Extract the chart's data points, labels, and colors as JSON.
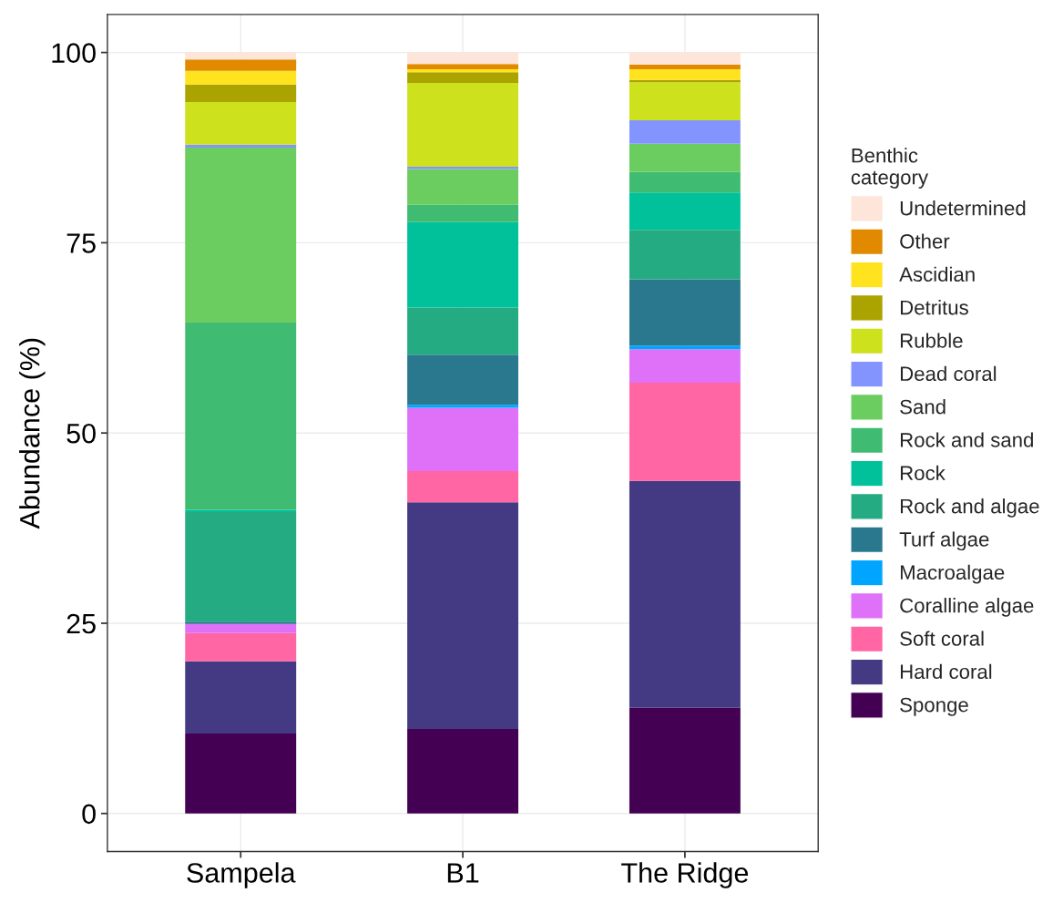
{
  "chart_data": {
    "type": "bar",
    "stacked": true,
    "ylabel": "Abundance (%)",
    "legend_title": "Benthic\ncategory",
    "legend": "right",
    "grid": true,
    "categories": [
      "Sampela",
      "B1",
      "The Ridge"
    ],
    "ylim": [
      -5,
      105
    ],
    "yticks": [
      0,
      25,
      50,
      75,
      100
    ],
    "series": [
      {
        "name": "Sponge",
        "color": "#440154",
        "values": [
          10.5,
          11.1,
          13.9
        ]
      },
      {
        "name": "Hard coral",
        "color": "#443983",
        "values": [
          9.5,
          29.8,
          29.8
        ]
      },
      {
        "name": "Soft coral",
        "color": "#ff66a3",
        "values": [
          3.7,
          4.1,
          12.9
        ]
      },
      {
        "name": "Coralline algae",
        "color": "#df70f8",
        "values": [
          1.2,
          8.3,
          4.4
        ]
      },
      {
        "name": "Macroalgae",
        "color": "#00a5ff",
        "values": [
          0,
          0.4,
          0.5
        ]
      },
      {
        "name": "Turf algae",
        "color": "#2a788e",
        "values": [
          0.3,
          6.6,
          8.7
        ]
      },
      {
        "name": "Rock and algae",
        "color": "#25ab82",
        "values": [
          14.4,
          6.2,
          6.5
        ]
      },
      {
        "name": "Rock",
        "color": "#00c19a",
        "values": [
          0.3,
          11.2,
          4.9
        ]
      },
      {
        "name": "Rock and sand",
        "color": "#40bc72",
        "values": [
          24.6,
          2.3,
          2.7
        ]
      },
      {
        "name": "Sand",
        "color": "#6bcd5f",
        "values": [
          23.0,
          4.7,
          3.7
        ]
      },
      {
        "name": "Dead coral",
        "color": "#8494ff",
        "values": [
          0.4,
          0.3,
          3.1
        ]
      },
      {
        "name": "Rubble",
        "color": "#cde11d",
        "values": [
          5.6,
          11.0,
          5.0
        ]
      },
      {
        "name": "Detritus",
        "color": "#aba300",
        "values": [
          2.3,
          1.4,
          0.3
        ]
      },
      {
        "name": "Ascidian",
        "color": "#ffe31f",
        "values": [
          1.8,
          0.4,
          1.4
        ]
      },
      {
        "name": "Other",
        "color": "#e18a00",
        "values": [
          1.5,
          0.7,
          0.6
        ]
      },
      {
        "name": "Undetermined",
        "color": "#fde5d9",
        "values": [
          0.9,
          1.5,
          1.6
        ]
      }
    ]
  }
}
